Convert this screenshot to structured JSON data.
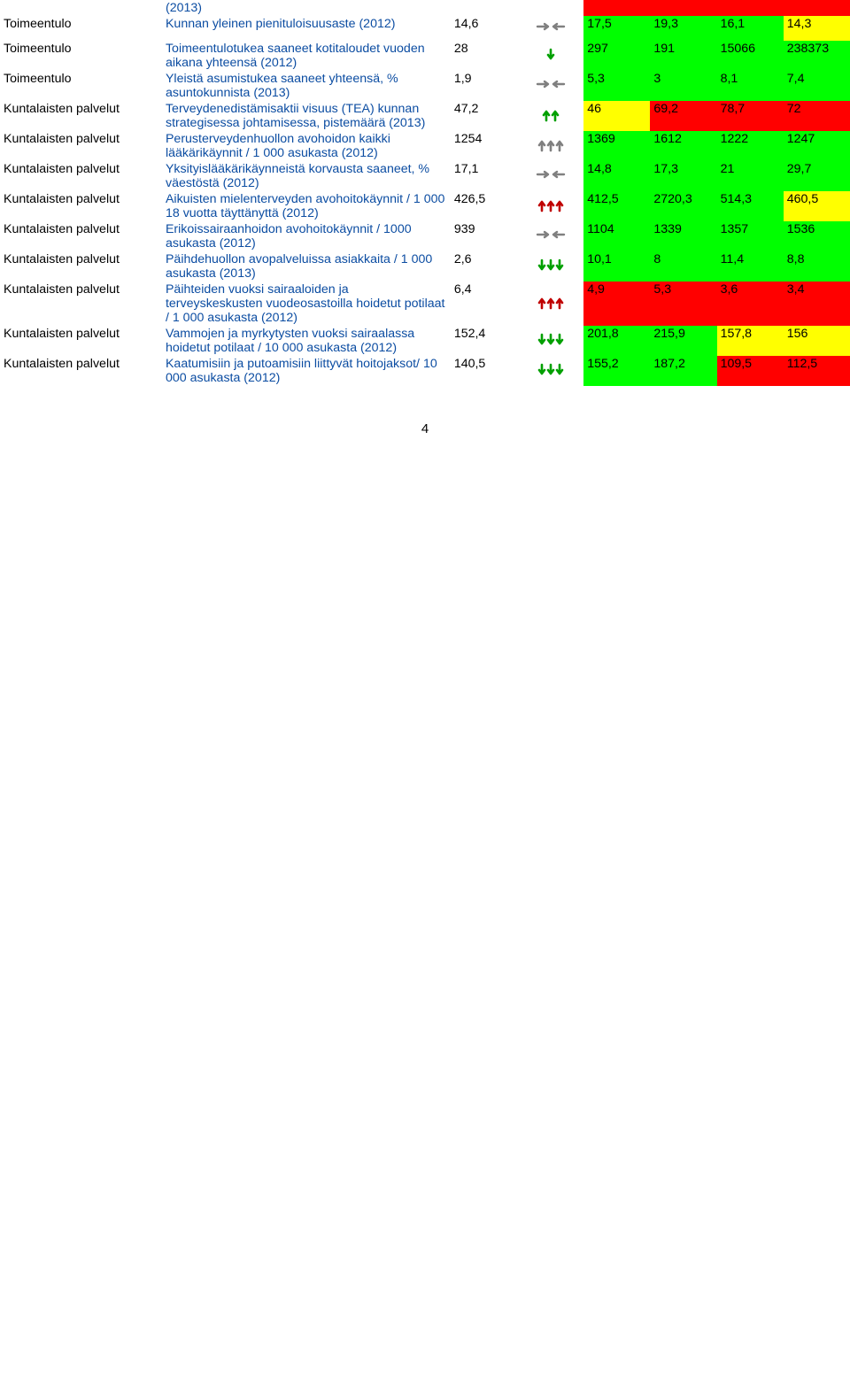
{
  "colors": {
    "blue_text": "#0c4da2",
    "black_text": "#000000",
    "bg_green": "#00ff00",
    "bg_yellow": "#ffff00",
    "bg_red": "#ff0000",
    "trend_gray": "#808080",
    "trend_green": "#00a000",
    "trend_red": "#c00000"
  },
  "rows": [
    {
      "category": "",
      "indicator": "(2013)",
      "val": "",
      "trend": "none",
      "cells": [
        {
          "v": "",
          "bg": "bg-red"
        },
        {
          "v": "",
          "bg": "bg-red"
        },
        {
          "v": "",
          "bg": "bg-red"
        },
        {
          "v": "",
          "bg": "bg-red"
        }
      ]
    },
    {
      "category": "Toimeentulo",
      "indicator": "Kunnan yleinen pienituloisuusaste (2012)",
      "val": "14,6",
      "trend": "flat-gray",
      "cells": [
        {
          "v": "17,5",
          "bg": "bg-green"
        },
        {
          "v": "19,3",
          "bg": "bg-green"
        },
        {
          "v": "16,1",
          "bg": "bg-green"
        },
        {
          "v": "14,3",
          "bg": "bg-yellow"
        }
      ]
    },
    {
      "category": "Toimeentulo",
      "indicator": "Toimeentulotukea saaneet kotitaloudet vuoden aikana yhteensä (2012)",
      "val": "28",
      "trend": "down1-green",
      "cells": [
        {
          "v": "297",
          "bg": "bg-green"
        },
        {
          "v": "191",
          "bg": "bg-green"
        },
        {
          "v": "15066",
          "bg": "bg-green"
        },
        {
          "v": "238373",
          "bg": "bg-green"
        }
      ]
    },
    {
      "category": "Toimeentulo",
      "indicator": "Yleistä asumistukea saaneet yhteensä, % asuntokunnista (2013)",
      "val": "1,9",
      "trend": "flat-gray",
      "cells": [
        {
          "v": "5,3",
          "bg": "bg-green"
        },
        {
          "v": "3",
          "bg": "bg-green"
        },
        {
          "v": "8,1",
          "bg": "bg-green"
        },
        {
          "v": "7,4",
          "bg": "bg-green"
        }
      ]
    },
    {
      "category": "Kuntalaisten palvelut",
      "indicator": "Terveydenedistämisaktii visuus (TEA) kunnan strategisessa johtamisessa, pistemäärä (2013)",
      "val": "47,2",
      "trend": "up2-green",
      "cells": [
        {
          "v": "46",
          "bg": "bg-yellow"
        },
        {
          "v": "69,2",
          "bg": "bg-red"
        },
        {
          "v": "78,7",
          "bg": "bg-red"
        },
        {
          "v": "72",
          "bg": "bg-red"
        }
      ]
    },
    {
      "category": "Kuntalaisten palvelut",
      "indicator": "Perusterveydenhuollon avohoidon kaikki lääkärikäynnit / 1 000 asukasta (2012)",
      "val": "1254",
      "trend": "up3-gray",
      "cells": [
        {
          "v": "1369",
          "bg": "bg-green"
        },
        {
          "v": "1612",
          "bg": "bg-green"
        },
        {
          "v": "1222",
          "bg": "bg-green"
        },
        {
          "v": "1247",
          "bg": "bg-green"
        }
      ]
    },
    {
      "category": "Kuntalaisten palvelut",
      "indicator": "Yksityislääkärikäynneistä korvausta saaneet, % väestöstä (2012)",
      "val": "17,1",
      "trend": "flat-gray",
      "cells": [
        {
          "v": "14,8",
          "bg": "bg-green"
        },
        {
          "v": "17,3",
          "bg": "bg-green"
        },
        {
          "v": "21",
          "bg": "bg-green"
        },
        {
          "v": "29,7",
          "bg": "bg-green"
        }
      ]
    },
    {
      "category": "Kuntalaisten palvelut",
      "indicator": "Aikuisten mielenterveyden avohoitokäynnit / 1 000 18 vuotta täyttänyttä (2012)",
      "val": "426,5",
      "trend": "up3-red",
      "cells": [
        {
          "v": "412,5",
          "bg": "bg-green"
        },
        {
          "v": "2720,3",
          "bg": "bg-green"
        },
        {
          "v": "514,3",
          "bg": "bg-green"
        },
        {
          "v": "460,5",
          "bg": "bg-yellow"
        }
      ]
    },
    {
      "category": "Kuntalaisten palvelut",
      "indicator": "Erikoissairaanhoidon avohoitokäynnit / 1000 asukasta (2012)",
      "val": "939",
      "trend": "flat-gray",
      "cells": [
        {
          "v": "1104",
          "bg": "bg-green"
        },
        {
          "v": "1339",
          "bg": "bg-green"
        },
        {
          "v": "1357",
          "bg": "bg-green"
        },
        {
          "v": "1536",
          "bg": "bg-green"
        }
      ]
    },
    {
      "category": "Kuntalaisten palvelut",
      "indicator": "Päihdehuollon avopalveluissa asiakkaita / 1 000 asukasta (2013)",
      "val": "2,6",
      "trend": "down3-green",
      "cells": [
        {
          "v": "10,1",
          "bg": "bg-green"
        },
        {
          "v": "8",
          "bg": "bg-green"
        },
        {
          "v": "11,4",
          "bg": "bg-green"
        },
        {
          "v": "8,8",
          "bg": "bg-green"
        }
      ]
    },
    {
      "category": "Kuntalaisten palvelut",
      "indicator": "Päihteiden vuoksi sairaaloiden ja terveyskeskusten vuodeosastoilla hoidetut potilaat / 1 000 asukasta (2012)",
      "val": "6,4",
      "trend": "up3-red",
      "cells": [
        {
          "v": "4,9",
          "bg": "bg-red"
        },
        {
          "v": "5,3",
          "bg": "bg-red"
        },
        {
          "v": "3,6",
          "bg": "bg-red"
        },
        {
          "v": "3,4",
          "bg": "bg-red"
        }
      ]
    },
    {
      "category": "Kuntalaisten palvelut",
      "indicator": "Vammojen ja myrkytysten vuoksi sairaalassa hoidetut potilaat / 10 000 asukasta (2012)",
      "val": "152,4",
      "trend": "down3-green",
      "cells": [
        {
          "v": "201,8",
          "bg": "bg-green"
        },
        {
          "v": "215,9",
          "bg": "bg-green"
        },
        {
          "v": "157,8",
          "bg": "bg-yellow"
        },
        {
          "v": "156",
          "bg": "bg-yellow"
        }
      ]
    },
    {
      "category": "Kuntalaisten palvelut",
      "indicator": "Kaatumisiin ja putoamisiin liittyvät hoitojaksot/ 10 000 asukasta (2012)",
      "val": "140,5",
      "trend": "down3-green",
      "cells": [
        {
          "v": "155,2",
          "bg": "bg-green"
        },
        {
          "v": "187,2",
          "bg": "bg-green"
        },
        {
          "v": "109,5",
          "bg": "bg-red"
        },
        {
          "v": "112,5",
          "bg": "bg-red"
        }
      ]
    }
  ],
  "page_number": "4"
}
